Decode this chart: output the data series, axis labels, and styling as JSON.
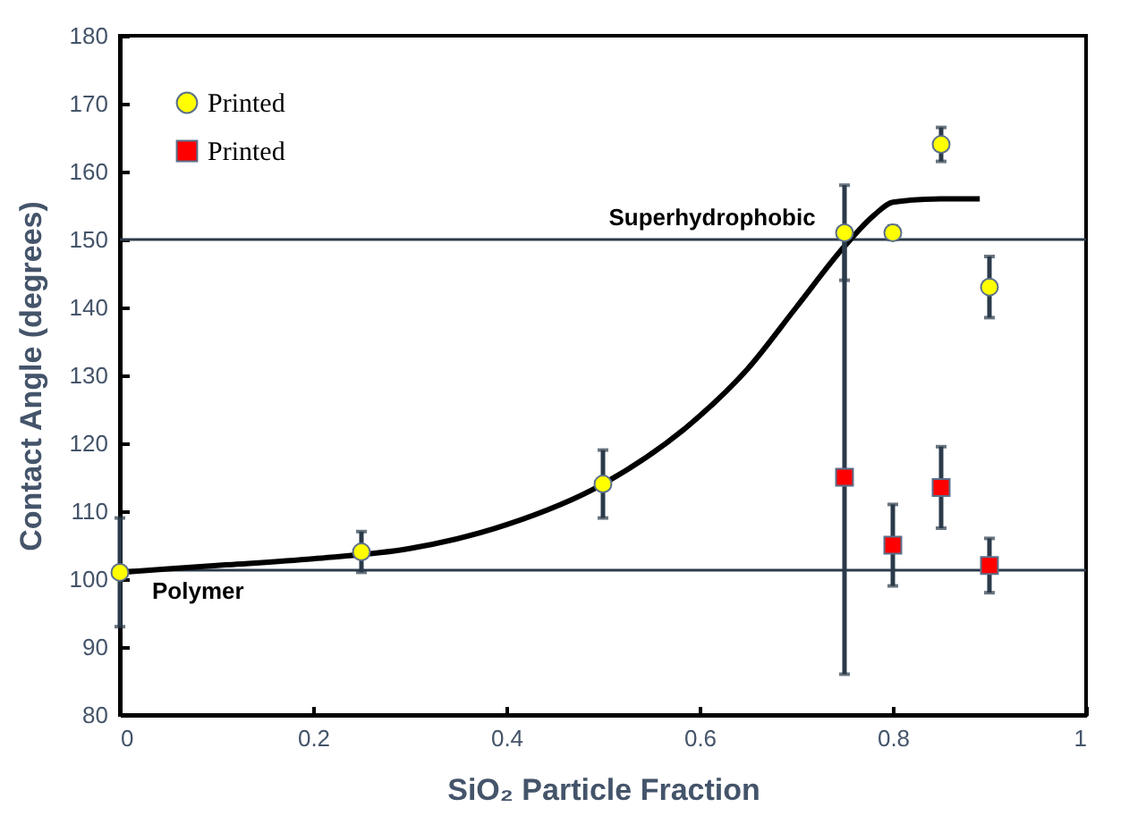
{
  "chart_data": {
    "type": "scatter",
    "xlabel": "SiO₂ Particle Fraction",
    "ylabel": "Contact Angle (degrees)",
    "xlim": [
      0,
      1
    ],
    "xticks": [
      0,
      0.2,
      0.4,
      0.6,
      0.8,
      1
    ],
    "ylim": [
      80,
      180
    ],
    "yticks": [
      80,
      90,
      100,
      110,
      120,
      130,
      140,
      150,
      160,
      170,
      180
    ],
    "grid": false,
    "legend": "top left",
    "series": [
      {
        "name": "Printed",
        "color": "#ffff00",
        "marker": "circle",
        "x": [
          0,
          0.25,
          0.5,
          0.75,
          0.8,
          0.85,
          0.9
        ],
        "values": [
          101,
          104,
          114,
          151,
          151,
          164,
          143
        ],
        "errors": [
          8,
          3,
          5,
          7,
          1,
          2.5,
          4.5
        ]
      },
      {
        "name": "Printed",
        "color": "#ff0000",
        "marker": "square",
        "x": [
          0.75,
          0.8,
          0.85,
          0.9
        ],
        "values": [
          115,
          105,
          113.5,
          102
        ],
        "errors": [
          [
            86,
            151
          ],
          6,
          6,
          4
        ]
      },
      {
        "type": "line",
        "color": "#000000",
        "marker": "none",
        "x": [
          0,
          0.1,
          0.2,
          0.3,
          0.4,
          0.5,
          0.6,
          0.65,
          0.7,
          0.75,
          0.78,
          0.8,
          0.85,
          0.89
        ],
        "values": [
          101,
          102,
          103,
          104.5,
          108,
          114,
          124,
          131,
          140,
          149,
          153.5,
          155.5,
          156,
          156
        ]
      }
    ],
    "ref_lines": [
      {
        "axis": "y",
        "value": 150,
        "label": "Superhydrophobic"
      },
      {
        "axis": "y",
        "value": 101.3,
        "label": "Polymer"
      }
    ]
  }
}
